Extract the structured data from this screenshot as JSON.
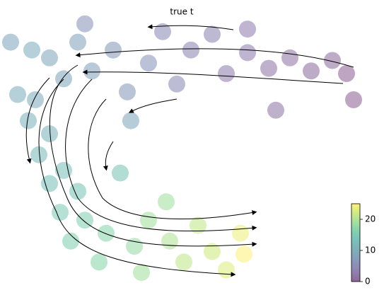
{
  "chart_data": {
    "type": "scatter",
    "title": "true t",
    "x": [
      96,
      92,
      86,
      80,
      74,
      68,
      62,
      58,
      52,
      48,
      44,
      40,
      34,
      30,
      24,
      20,
      16,
      12,
      7,
      3,
      8,
      6,
      12,
      9,
      16,
      12,
      20,
      15,
      22,
      18,
      28,
      26,
      36,
      40,
      38,
      46,
      50,
      54,
      58,
      62,
      66,
      67,
      76,
      98,
      35,
      45,
      32,
      68,
      22,
      1
    ],
    "y": [
      80,
      85,
      81,
      86,
      82,
      88,
      80,
      95,
      89,
      76,
      96,
      84,
      73,
      89,
      81,
      92,
      78,
      86,
      89,
      72,
      70,
      62,
      57,
      49,
      43,
      38,
      35,
      27,
      24,
      16,
      19,
      8,
      14,
      24,
      4,
      16,
      8,
      22,
      12,
      5,
      19,
      11,
      66,
      70,
      62,
      31,
      42,
      97,
      99,
      92
    ],
    "values": [
      0,
      1,
      1,
      2,
      2,
      3,
      3,
      4,
      4,
      5,
      5,
      6,
      7,
      7,
      8,
      8,
      9,
      9,
      10,
      10,
      10,
      11,
      11,
      12,
      13,
      13,
      14,
      15,
      16,
      16,
      17,
      17,
      18,
      19,
      19,
      20,
      21,
      21,
      22,
      23,
      24,
      25,
      2,
      0,
      9,
      19,
      14,
      3,
      6,
      9
    ],
    "xlim": [
      0,
      100
    ],
    "ylim": [
      0,
      100
    ],
    "colormap": "viridis",
    "clim": [
      0,
      25
    ],
    "cticks": [
      0,
      10,
      20
    ]
  }
}
